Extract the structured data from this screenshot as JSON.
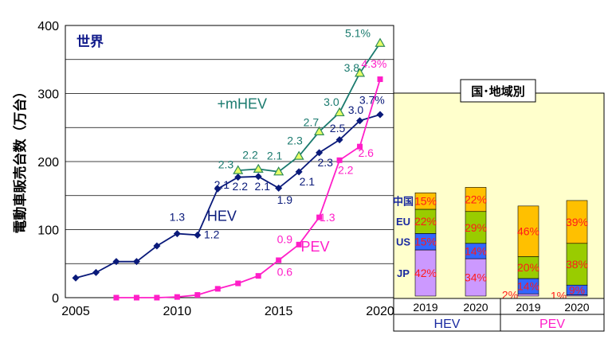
{
  "chart_data": [
    {
      "type": "line",
      "ylabel": "電動車販売台数（万台）",
      "panel_label": "世界",
      "ylim": [
        0,
        400
      ],
      "yticks": [
        0,
        100,
        200,
        300,
        400
      ],
      "xlim": [
        2005,
        2020
      ],
      "xticks": [
        2005,
        2010,
        2015,
        2020
      ],
      "grid": "horizontal",
      "series": [
        {
          "name": "HEV",
          "color": "#0a1a7a",
          "marker": "diamond",
          "points": [
            [
              2005,
              29
            ],
            [
              2006,
              37
            ],
            [
              2007,
              53
            ],
            [
              2008,
              53
            ],
            [
              2009,
              76
            ],
            [
              2010,
              94
            ],
            [
              2011,
              92
            ],
            [
              2012,
              160
            ],
            [
              2013,
              177
            ],
            [
              2014,
              178
            ],
            [
              2015,
              161
            ],
            [
              2016,
              185
            ],
            [
              2017,
              213
            ],
            [
              2018,
              232
            ],
            [
              2019,
              260
            ],
            [
              2020,
              269
            ]
          ]
        },
        {
          "name": "+mHEV",
          "color": "#1a7a6e",
          "marker": "triangle",
          "points": [
            [
              2013,
              187
            ],
            [
              2014,
              189
            ],
            [
              2015,
              185
            ],
            [
              2016,
              208
            ],
            [
              2017,
              244
            ],
            [
              2018,
              272
            ],
            [
              2019,
              330
            ],
            [
              2020,
              374
            ]
          ]
        },
        {
          "name": "PEV",
          "color": "#ff1ec8",
          "marker": "square",
          "points": [
            [
              2007,
              0
            ],
            [
              2008,
              0
            ],
            [
              2009,
              0
            ],
            [
              2010,
              1
            ],
            [
              2011,
              4
            ],
            [
              2012,
              13
            ],
            [
              2013,
              21
            ],
            [
              2014,
              32
            ],
            [
              2015,
              55
            ],
            [
              2016,
              78
            ],
            [
              2017,
              118
            ],
            [
              2018,
              202
            ],
            [
              2019,
              222
            ],
            [
              2020,
              321
            ]
          ]
        }
      ],
      "annotations": [
        {
          "text": "1.3",
          "x": 2010,
          "y": 113,
          "color": "#0a1a7a"
        },
        {
          "text": "1.2",
          "x": 2011.7,
          "y": 87,
          "color": "#0a1a7a"
        },
        {
          "text": "2.1",
          "x": 2012.2,
          "y": 160,
          "color": "#0a1a7a"
        },
        {
          "text": "2.2",
          "x": 2013.1,
          "y": 158,
          "color": "#0a1a7a"
        },
        {
          "text": "2.1",
          "x": 2014.2,
          "y": 158,
          "color": "#0a1a7a"
        },
        {
          "text": "1.9",
          "x": 2015.3,
          "y": 138,
          "color": "#0a1a7a"
        },
        {
          "text": "2.1",
          "x": 2016.4,
          "y": 165,
          "color": "#0a1a7a"
        },
        {
          "text": "2.3",
          "x": 2017.3,
          "y": 193,
          "color": "#0a1a7a"
        },
        {
          "text": "2.5",
          "x": 2017.9,
          "y": 243,
          "color": "#0a1a7a"
        },
        {
          "text": "3.0",
          "x": 2018.8,
          "y": 270,
          "color": "#0a1a7a"
        },
        {
          "text": "3.7%",
          "x": 2019.6,
          "y": 285,
          "color": "#0a1a7a"
        },
        {
          "text": "2.3",
          "x": 2012.4,
          "y": 190,
          "color": "#1a7a6e"
        },
        {
          "text": "2.2",
          "x": 2013.6,
          "y": 204,
          "color": "#1a7a6e"
        },
        {
          "text": "2.1",
          "x": 2014.8,
          "y": 203,
          "color": "#1a7a6e"
        },
        {
          "text": "2.3",
          "x": 2015.8,
          "y": 225,
          "color": "#1a7a6e"
        },
        {
          "text": "2.7",
          "x": 2016.6,
          "y": 252,
          "color": "#1a7a6e"
        },
        {
          "text": "3.0",
          "x": 2017.6,
          "y": 282,
          "color": "#1a7a6e"
        },
        {
          "text": "3.8",
          "x": 2018.6,
          "y": 332,
          "color": "#1a7a6e"
        },
        {
          "text": "5.1%",
          "x": 2018.9,
          "y": 383,
          "color": "#1a7a6e"
        },
        {
          "text": "+mHEV",
          "x": 2013.2,
          "y": 278,
          "color": "#1a7a6e",
          "big": true
        },
        {
          "text": "HEV",
          "x": 2012.2,
          "y": 113,
          "color": "#0a1a7a",
          "big": true
        },
        {
          "text": "PEV",
          "x": 2016.8,
          "y": 68,
          "color": "#ff1ec8",
          "big": true
        },
        {
          "text": "0.6",
          "x": 2015.3,
          "y": 32,
          "color": "#ff1ec8"
        },
        {
          "text": "0.9",
          "x": 2015.3,
          "y": 80,
          "color": "#ff1ec8"
        },
        {
          "text": "1.3",
          "x": 2017.4,
          "y": 112,
          "color": "#ff1ec8"
        },
        {
          "text": "2.2",
          "x": 2018.3,
          "y": 182,
          "color": "#ff1ec8"
        },
        {
          "text": "2.6",
          "x": 2019.3,
          "y": 207,
          "color": "#ff1ec8"
        },
        {
          "text": "4.3%",
          "x": 2019.7,
          "y": 338,
          "color": "#ff1ec8"
        }
      ]
    },
    {
      "type": "bar",
      "stacked": true,
      "title": "国･地域別",
      "regions": [
        "JP",
        "US",
        "EU",
        "中国"
      ],
      "colors": {
        "JP": "#cc99ff",
        "US": "#3366ff",
        "EU": "#99cc00",
        "中国": "#ffc000"
      },
      "label_color": "#ff1a1a",
      "bars": [
        {
          "group": "HEV",
          "year": "2019",
          "values": {
            "JP": 42,
            "US": 15,
            "EU": 22,
            "中国": 15
          },
          "labels": {
            "JP": "42%",
            "US": "15%",
            "EU": "22%",
            "中国": "15%"
          }
        },
        {
          "group": "HEV",
          "year": "2020",
          "values": {
            "JP": 34,
            "US": 14,
            "EU": 29,
            "中国": 22
          },
          "labels": {
            "JP": "34%",
            "US": "14%",
            "EU": "29%",
            "中国": "22%"
          }
        },
        {
          "group": "PEV",
          "year": "2019",
          "values": {
            "JP": 2,
            "US": 14,
            "EU": 20,
            "中国": 46
          },
          "labels": {
            "JP": "2%",
            "US": "14%",
            "EU": "20%",
            "中国": "46%"
          }
        },
        {
          "group": "PEV",
          "year": "2020",
          "values": {
            "JP": 1,
            "US": 9,
            "EU": 38,
            "中国": 39
          },
          "labels": {
            "JP": "1%",
            "US": "9%",
            "EU": "38%",
            "中国": "39%"
          }
        }
      ],
      "groups": [
        "HEV",
        "PEV"
      ]
    }
  ]
}
